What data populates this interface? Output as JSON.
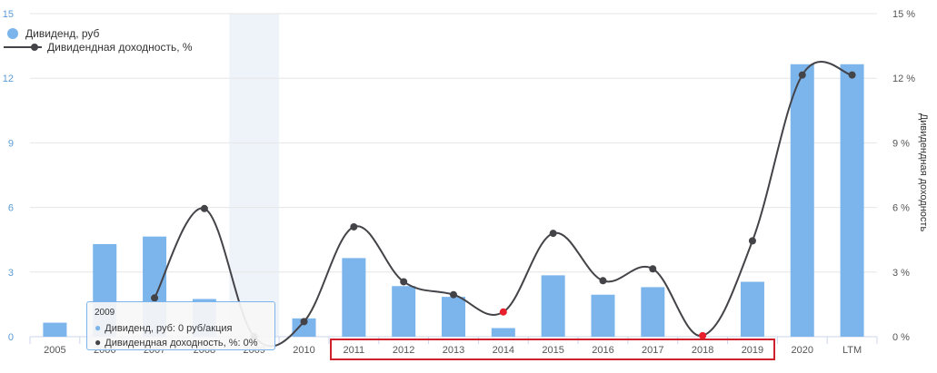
{
  "chart_data": {
    "type": "bar+line",
    "categories": [
      "2005",
      "2006",
      "2007",
      "2008",
      "2009",
      "2010",
      "2011",
      "2012",
      "2013",
      "2014",
      "2015",
      "2016",
      "2017",
      "2018",
      "2019",
      "2020",
      "LTM"
    ],
    "series": [
      {
        "name": "Дивиденд, руб",
        "type": "bar",
        "axis": "left",
        "color": "#7cb5ec",
        "values": [
          0.65,
          4.3,
          4.65,
          1.75,
          0,
          0.85,
          3.65,
          2.35,
          1.85,
          0.4,
          2.85,
          1.95,
          2.3,
          0,
          2.55,
          12.65,
          12.65
        ]
      },
      {
        "name": "Дивидендная доходность, %",
        "type": "line",
        "axis": "right",
        "color": "#434348",
        "values": [
          null,
          null,
          1.8,
          5.95,
          0,
          0.7,
          5.1,
          2.55,
          1.95,
          1.15,
          4.8,
          2.6,
          3.15,
          0.05,
          4.45,
          12.15,
          12.15
        ],
        "red_points": [
          "2014",
          "2018"
        ]
      }
    ],
    "left_axis": {
      "ticks": [
        "0",
        "3",
        "6",
        "9",
        "12",
        "15"
      ],
      "min": 0,
      "max": 15
    },
    "right_axis": {
      "ticks": [
        "0 %",
        "3 %",
        "6 %",
        "9 %",
        "12 %",
        "15 %"
      ],
      "min": 0,
      "max": 15,
      "title": "Дивидендная доходность"
    },
    "hovered_category": "2009",
    "legend_position": "top-left",
    "grid": true,
    "highlight_range": [
      "2011",
      "2019"
    ]
  },
  "legend": {
    "dividend": "Дивиденд, руб",
    "yield": "Дивидендная доходность, %"
  },
  "tooltip": {
    "title": "2009",
    "row1": "Дивиденд, руб: 0 руб/акция",
    "row2": "Дивидендная доходность, %: 0%"
  },
  "colors": {
    "bar": "#7cb5ec",
    "line": "#434348",
    "highlight": "#d0202e",
    "hover_band": "#eef3fa"
  }
}
